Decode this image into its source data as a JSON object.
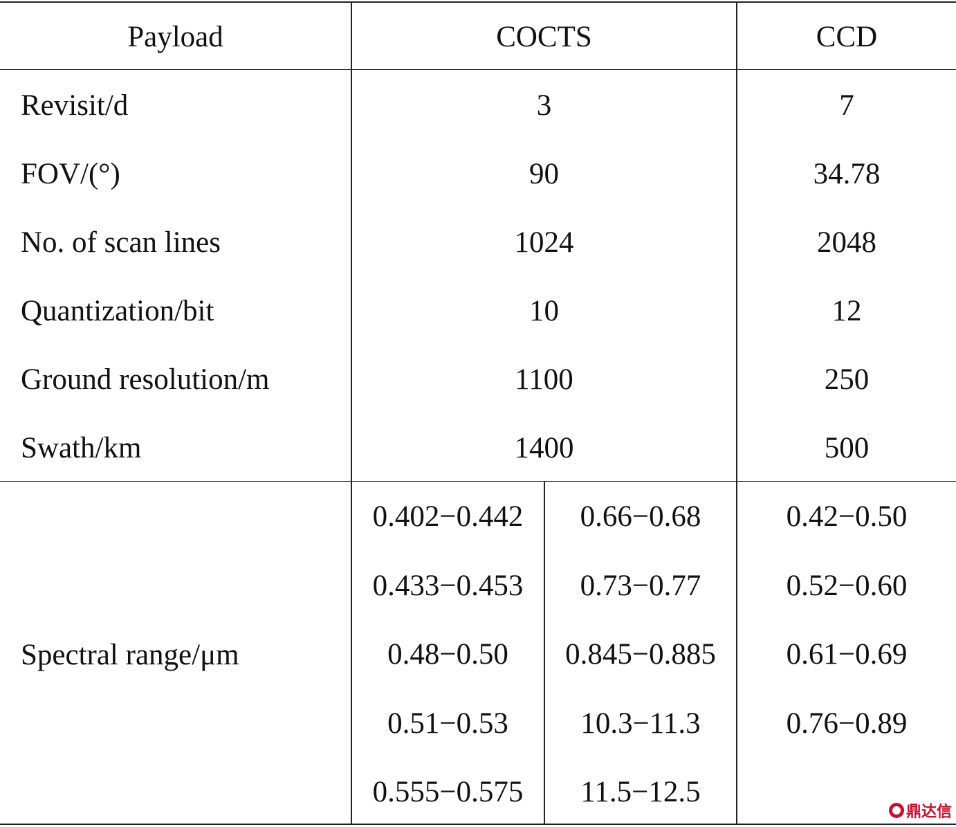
{
  "table": {
    "header": {
      "c0": "Payload",
      "c1": "COCTS",
      "c2": "CCD"
    },
    "rows": [
      {
        "label": "Revisit/d",
        "cocts": "3",
        "ccd": "7"
      },
      {
        "label": "FOV/(°)",
        "cocts": "90",
        "ccd": "34.78"
      },
      {
        "label": "No. of scan lines",
        "cocts": "1024",
        "ccd": "2048"
      },
      {
        "label": "Quantization/bit",
        "cocts": "10",
        "ccd": "12"
      },
      {
        "label": "Ground resolution/m",
        "cocts": "1100",
        "ccd": "250"
      },
      {
        "label": "Swath/km",
        "cocts": "1400",
        "ccd": "500"
      }
    ],
    "spectral": {
      "label": "Spectral range/μm",
      "cocts_col1": [
        "0.402−0.442",
        "0.433−0.453",
        "0.48−0.50",
        "0.51−0.53",
        "0.555−0.575"
      ],
      "cocts_col2": [
        "0.66−0.68",
        "0.73−0.77",
        "0.845−0.885",
        "10.3−11.3",
        "11.5−12.5"
      ],
      "ccd": [
        "0.42−0.50",
        "0.52−0.60",
        "0.61−0.69",
        "0.76−0.89"
      ]
    }
  },
  "watermark": {
    "text": "鼎达信",
    "color": "#c8102e"
  }
}
